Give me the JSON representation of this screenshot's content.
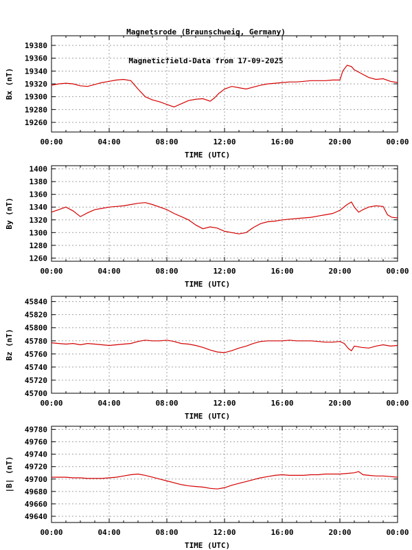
{
  "title_line1": "Magnetsrode (Braunschweig, Germany)",
  "title_line2": "Magneticfield-Data from 17-09-2025",
  "line_color": "#d40000",
  "grid_color": "#a0a0a0",
  "chart_data": [
    {
      "type": "line",
      "ylabel": "Bx (nT)",
      "xlabel": "TIME (UTC)",
      "x_ticks": [
        "00:00",
        "04:00",
        "08:00",
        "12:00",
        "16:00",
        "20:00",
        "00:00"
      ],
      "y_ticks": [
        19260,
        19280,
        19300,
        19320,
        19340,
        19360,
        19380
      ],
      "ylim": [
        19245,
        19395
      ],
      "xlim": [
        0,
        24
      ],
      "series": [
        {
          "x": [
            0,
            0.5,
            1,
            1.5,
            2,
            2.5,
            3,
            3.5,
            4,
            4.5,
            5,
            5.5,
            6,
            6.5,
            7,
            7.5,
            8,
            8.5,
            9,
            9.5,
            10,
            10.5,
            11,
            11.3,
            11.6,
            12,
            12.5,
            13,
            13.5,
            14,
            14.5,
            15,
            15.5,
            16,
            16.5,
            17,
            17.5,
            18,
            18.5,
            19,
            19.5,
            20,
            20.2,
            20.5,
            20.8,
            21,
            21.5,
            22,
            22.5,
            23,
            23.5,
            24
          ],
          "y": [
            19318,
            19320,
            19321,
            19320,
            19317,
            19316,
            19319,
            19322,
            19324,
            19326,
            19327,
            19325,
            19312,
            19300,
            19295,
            19292,
            19288,
            19284,
            19289,
            19294,
            19296,
            19297,
            19293,
            19298,
            19305,
            19312,
            19316,
            19314,
            19312,
            19315,
            19318,
            19320,
            19321,
            19322,
            19323,
            19323,
            19324,
            19325,
            19325,
            19325,
            19326,
            19326,
            19340,
            19349,
            19347,
            19342,
            19336,
            19330,
            19327,
            19328,
            19324,
            19322
          ]
        }
      ]
    },
    {
      "type": "line",
      "ylabel": "By (nT)",
      "xlabel": "TIME (UTC)",
      "x_ticks": [
        "00:00",
        "04:00",
        "08:00",
        "12:00",
        "16:00",
        "20:00",
        "00:00"
      ],
      "y_ticks": [
        1260,
        1280,
        1300,
        1320,
        1340,
        1360,
        1380,
        1400
      ],
      "ylim": [
        1255,
        1405
      ],
      "xlim": [
        0,
        24
      ],
      "series": [
        {
          "x": [
            0,
            0.5,
            1,
            1.5,
            2,
            2.5,
            3,
            3.5,
            4,
            4.5,
            5,
            5.5,
            6,
            6.5,
            7,
            7.5,
            8,
            8.5,
            9,
            9.5,
            10,
            10.5,
            11,
            11.5,
            12,
            12.5,
            13,
            13.5,
            14,
            14.5,
            15,
            15.5,
            16,
            16.5,
            17,
            17.5,
            18,
            18.5,
            19,
            19.5,
            20,
            20.5,
            20.8,
            21,
            21.3,
            21.6,
            22,
            22.5,
            23,
            23.3,
            23.6,
            24
          ],
          "y": [
            1332,
            1336,
            1340,
            1334,
            1325,
            1331,
            1336,
            1338,
            1340,
            1341,
            1342,
            1344,
            1346,
            1347,
            1344,
            1340,
            1336,
            1330,
            1325,
            1320,
            1312,
            1306,
            1309,
            1307,
            1302,
            1300,
            1298,
            1300,
            1308,
            1314,
            1317,
            1318,
            1320,
            1321,
            1322,
            1323,
            1324,
            1326,
            1328,
            1330,
            1335,
            1344,
            1348,
            1340,
            1332,
            1336,
            1340,
            1342,
            1341,
            1328,
            1324,
            1323
          ]
        }
      ]
    },
    {
      "type": "line",
      "ylabel": "Bz (nT)",
      "xlabel": "TIME (UTC)",
      "x_ticks": [
        "00:00",
        "04:00",
        "08:00",
        "12:00",
        "16:00",
        "20:00",
        "00:00"
      ],
      "y_ticks": [
        45700,
        45720,
        45740,
        45760,
        45780,
        45800,
        45820,
        45840
      ],
      "ylim": [
        45700,
        45848
      ],
      "xlim": [
        0,
        24
      ],
      "series": [
        {
          "x": [
            0,
            0.5,
            1,
            1.5,
            2,
            2.5,
            3,
            3.5,
            4,
            4.5,
            5,
            5.5,
            6,
            6.5,
            7,
            7.5,
            8,
            8.5,
            9,
            9.5,
            10,
            10.5,
            11,
            11.5,
            12,
            12.5,
            13,
            13.5,
            14,
            14.5,
            15,
            15.5,
            16,
            16.5,
            17,
            17.5,
            18,
            18.5,
            19,
            19.5,
            20,
            20.3,
            20.6,
            20.8,
            21,
            21.5,
            22,
            22.5,
            23,
            23.5,
            24
          ],
          "y": [
            45777,
            45776,
            45775,
            45776,
            45774,
            45776,
            45775,
            45774,
            45773,
            45774,
            45775,
            45776,
            45779,
            45781,
            45780,
            45780,
            45781,
            45779,
            45776,
            45775,
            45773,
            45770,
            45766,
            45763,
            45762,
            45765,
            45769,
            45772,
            45776,
            45779,
            45780,
            45780,
            45780,
            45781,
            45780,
            45780,
            45780,
            45779,
            45778,
            45778,
            45779,
            45776,
            45768,
            45765,
            45772,
            45770,
            45769,
            45772,
            45774,
            45772,
            45773
          ]
        }
      ]
    },
    {
      "type": "line",
      "ylabel": "|B| (nT)",
      "xlabel": "TIME (UTC)",
      "x_ticks": [
        "00:00",
        "04:00",
        "08:00",
        "12:00",
        "16:00",
        "20:00",
        "00:00"
      ],
      "y_ticks": [
        49640,
        49660,
        49680,
        49700,
        49720,
        49740,
        49760,
        49780
      ],
      "ylim": [
        49630,
        49785
      ],
      "xlim": [
        0,
        24
      ],
      "series": [
        {
          "x": [
            0,
            0.5,
            1,
            1.5,
            2,
            2.5,
            3,
            3.5,
            4,
            4.5,
            5,
            5.5,
            6,
            6.5,
            7,
            7.5,
            8,
            8.5,
            9,
            9.5,
            10,
            10.5,
            11,
            11.5,
            12,
            12.5,
            13,
            13.5,
            14,
            14.5,
            15,
            15.5,
            16,
            16.5,
            17,
            17.5,
            18,
            18.5,
            19,
            19.5,
            20,
            20.5,
            21,
            21.3,
            21.6,
            22,
            22.5,
            23,
            23.5,
            24
          ],
          "y": [
            49703,
            49703,
            49703,
            49702,
            49702,
            49701,
            49701,
            49701,
            49702,
            49703,
            49705,
            49707,
            49708,
            49706,
            49703,
            49700,
            49697,
            49694,
            49691,
            49689,
            49688,
            49687,
            49685,
            49684,
            49686,
            49690,
            49693,
            49696,
            49699,
            49702,
            49704,
            49706,
            49707,
            49706,
            49706,
            49706,
            49707,
            49707,
            49708,
            49708,
            49708,
            49709,
            49710,
            49712,
            49707,
            49706,
            49705,
            49705,
            49704,
            49703
          ]
        }
      ]
    }
  ]
}
